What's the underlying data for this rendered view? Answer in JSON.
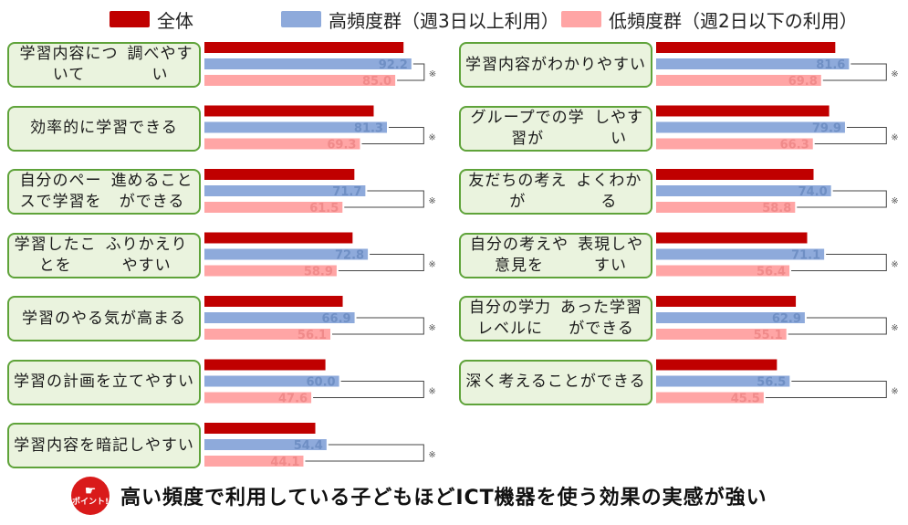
{
  "legend": [
    {
      "label": "全体",
      "color": "#c00000"
    },
    {
      "label": "高頻度群（週3日以上利用）",
      "color": "#8eaadb"
    },
    {
      "label": "低頻度群（週2日以下の利用）",
      "color": "#ffa5a5"
    }
  ],
  "chart_data": {
    "type": "bar",
    "orientation": "horizontal",
    "value_range": [
      0,
      100
    ],
    "series": [
      {
        "name": "全体",
        "color": "#c00000"
      },
      {
        "name": "高頻度群（週3日以上利用）",
        "color": "#8eaadb"
      },
      {
        "name": "低頻度群（週2日以下の利用）",
        "color": "#ffa5a5"
      }
    ],
    "significance_mark": "※",
    "panels": [
      {
        "items": [
          {
            "label": [
              "学習内容について",
              "調べやすい"
            ],
            "values": [
              "88.7",
              "92.2",
              "85.0"
            ]
          },
          {
            "label": [
              "効率的に学習できる"
            ],
            "values": [
              "75.4",
              "81.3",
              "69.3"
            ]
          },
          {
            "label": [
              "自分のペースで学習を",
              "進めることができる"
            ],
            "values": [
              "66.8",
              "71.7",
              "61.5"
            ]
          },
          {
            "label": [
              "学習したことを",
              "ふりかえりやすい"
            ],
            "values": [
              "66.0",
              "72.8",
              "58.9"
            ]
          },
          {
            "label": [
              "学習のやる気が高まる"
            ],
            "values": [
              "61.6",
              "66.9",
              "56.1"
            ]
          },
          {
            "label": [
              "学習の計画を立てやすい"
            ],
            "values": [
              "53.9",
              "60.0",
              "47.6"
            ]
          },
          {
            "label": [
              "学習内容を暗記しやすい"
            ],
            "values": [
              "49.4",
              "54.4",
              "44.1"
            ]
          }
        ]
      },
      {
        "items": [
          {
            "label": [
              "学習内容がわかりやすい"
            ],
            "values": [
              "75.8",
              "81.6",
              "69.8"
            ]
          },
          {
            "label": [
              "グループでの学習が",
              "しやすい"
            ],
            "values": [
              "73.2",
              "79.9",
              "66.3"
            ]
          },
          {
            "label": [
              "友だちの考えが",
              "よくわかる"
            ],
            "values": [
              "66.6",
              "74.0",
              "58.8"
            ]
          },
          {
            "label": [
              "自分の考えや意見を",
              "表現しやすい"
            ],
            "values": [
              "63.9",
              "71.1",
              "56.4"
            ]
          },
          {
            "label": [
              "自分の学力レベルに",
              "あった学習ができる"
            ],
            "values": [
              "59.1",
              "62.9",
              "55.1"
            ]
          },
          {
            "label": [
              "深く考えることができる"
            ],
            "values": [
              "51.1",
              "56.5",
              "45.5"
            ]
          }
        ]
      }
    ]
  },
  "footer": {
    "icon_text": "ポイント!",
    "text": "高い頻度で利用している子どもほどICT機器を使う効果の実感が強い"
  }
}
